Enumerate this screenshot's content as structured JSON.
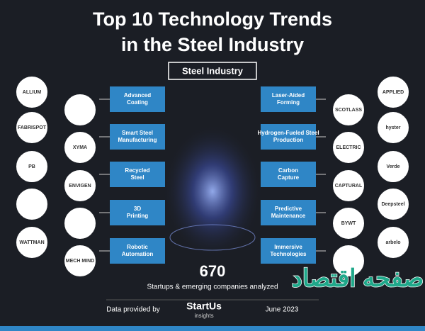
{
  "title": [
    "Top 10 Technology Trends",
    "in the Steel Industry"
  ],
  "center_label": "Steel Industry",
  "left_trends": [
    "Advanced Coating",
    "Smart Steel Manufacturing",
    "Recycled Steel",
    "3D Printing",
    "Robotic Automation"
  ],
  "right_trends": [
    "Laser-Aided Forming",
    "Hydrogen-Fueled Steel Production",
    "Carbon Capture",
    "Predictive Maintenance",
    "Immersive Technologies"
  ],
  "logos": {
    "left_outer": [
      "ALLIUM",
      "FABRISPOT",
      "PB",
      "",
      "WATTMAN"
    ],
    "left_inner": [
      "",
      "XYMA",
      "ENVIGEN",
      "",
      "MECH MIND"
    ],
    "right_inner": [
      "SCOTLASS",
      "ELECTRIC",
      "CAPTURAL",
      "BYWT",
      ""
    ],
    "right_outer": [
      "APPLIED",
      "hyster",
      "Verde",
      "Deepsteel",
      "arbelo"
    ]
  },
  "count": "670",
  "count_caption": "Startups & emerging companies analyzed",
  "footer": {
    "provided_by": "Data provided by",
    "brand": "StartUs",
    "brand_sub": "insights",
    "date": "June 2023"
  },
  "watermark": "صفحه اقتصاد"
}
